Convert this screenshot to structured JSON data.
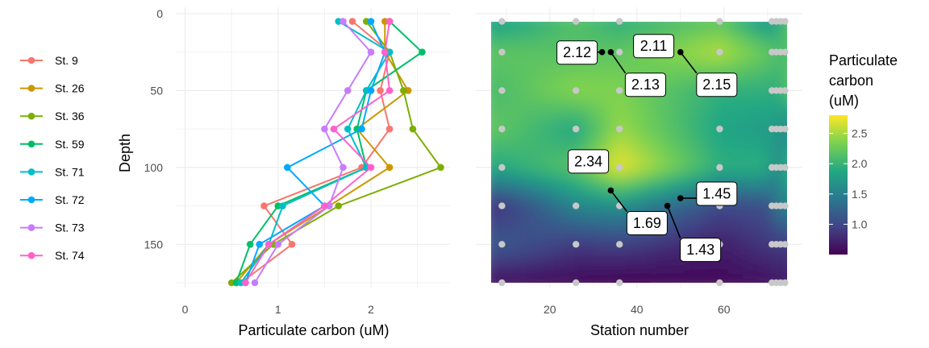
{
  "chart_data": [
    {
      "type": "line",
      "xlabel": "Particulate carbon (uM)",
      "ylabel": "Depth",
      "xlim": [
        -0.1,
        2.85
      ],
      "ylim": [
        0,
        175
      ],
      "y_reversed": true,
      "x_ticks": [
        0,
        1,
        2
      ],
      "y_ticks": [
        0,
        50,
        100,
        150
      ],
      "legend_position": "left",
      "series": [
        {
          "name": "St. 9",
          "color": "#F8766D",
          "points": [
            [
              1.8,
              5
            ],
            [
              2.2,
              25
            ],
            [
              2.1,
              50
            ],
            [
              2.2,
              75
            ],
            [
              1.9,
              100
            ],
            [
              0.85,
              125
            ],
            [
              1.15,
              150
            ],
            [
              0.6,
              175
            ]
          ]
        },
        {
          "name": "St. 26",
          "color": "#CD9600",
          "points": [
            [
              2.15,
              5
            ],
            [
              2.15,
              25
            ],
            [
              2.4,
              50
            ],
            [
              1.85,
              75
            ],
            [
              2.2,
              100
            ],
            [
              1.55,
              125
            ],
            [
              0.9,
              150
            ],
            [
              0.55,
              175
            ]
          ]
        },
        {
          "name": "St. 36",
          "color": "#7CAE00",
          "points": [
            [
              1.95,
              5
            ],
            [
              2.2,
              25
            ],
            [
              2.35,
              50
            ],
            [
              2.45,
              75
            ],
            [
              2.75,
              100
            ],
            [
              1.65,
              125
            ],
            [
              0.95,
              150
            ],
            [
              0.5,
              175
            ]
          ]
        },
        {
          "name": "St. 59",
          "color": "#00BE67",
          "points": [
            [
              2.2,
              5
            ],
            [
              2.55,
              25
            ],
            [
              1.95,
              50
            ],
            [
              1.85,
              75
            ],
            [
              1.95,
              100
            ],
            [
              1.0,
              125
            ],
            [
              0.7,
              150
            ],
            [
              0.55,
              175
            ]
          ]
        },
        {
          "name": "St. 71",
          "color": "#00BFC4",
          "points": [
            [
              1.65,
              5
            ],
            [
              2.2,
              25
            ],
            [
              1.95,
              50
            ],
            [
              1.75,
              75
            ],
            [
              1.95,
              100
            ],
            [
              1.05,
              125
            ],
            [
              0.9,
              150
            ],
            [
              0.6,
              175
            ]
          ]
        },
        {
          "name": "St. 72",
          "color": "#00A9FF",
          "points": [
            [
              2.0,
              5
            ],
            [
              2.15,
              25
            ],
            [
              2.0,
              50
            ],
            [
              1.9,
              75
            ],
            [
              1.1,
              100
            ],
            [
              1.5,
              125
            ],
            [
              0.8,
              150
            ],
            [
              0.65,
              175
            ]
          ]
        },
        {
          "name": "St. 73",
          "color": "#C77CFF",
          "points": [
            [
              1.7,
              5
            ],
            [
              2.0,
              25
            ],
            [
              1.75,
              50
            ],
            [
              1.5,
              75
            ],
            [
              1.7,
              100
            ],
            [
              1.55,
              125
            ],
            [
              1.0,
              150
            ],
            [
              0.75,
              175
            ]
          ]
        },
        {
          "name": "St. 74",
          "color": "#FF61CC",
          "points": [
            [
              2.2,
              5
            ],
            [
              2.15,
              25
            ],
            [
              2.2,
              50
            ],
            [
              1.6,
              75
            ],
            [
              2.0,
              100
            ],
            [
              1.5,
              125
            ],
            [
              0.9,
              150
            ],
            [
              0.65,
              175
            ]
          ]
        }
      ]
    },
    {
      "type": "heatmap",
      "xlabel": "Station number",
      "xlim": [
        3,
        78
      ],
      "x_ticks": [
        20,
        40,
        60
      ],
      "ylim": [
        0,
        175
      ],
      "y_reversed": true,
      "colorbar": {
        "title_lines": [
          "Particulate",
          "carbon",
          "(uM)"
        ],
        "range": [
          0.5,
          2.8
        ],
        "ticks": [
          1.0,
          1.5,
          2.0,
          2.5
        ],
        "tick_labels": [
          "1.0",
          "1.5",
          "2.0",
          "2.5"
        ],
        "colors": [
          "#440154",
          "#414487",
          "#2A788E",
          "#22A884",
          "#7AD151",
          "#FDE725"
        ]
      },
      "stations": [
        9,
        26,
        36,
        59,
        71,
        72,
        73,
        74
      ],
      "depths": [
        5,
        25,
        50,
        75,
        100,
        125,
        150,
        175
      ],
      "values": [
        [
          1.8,
          2.15,
          1.95,
          2.2,
          1.65,
          2.0,
          1.7,
          2.2
        ],
        [
          2.2,
          2.15,
          2.2,
          2.55,
          2.2,
          2.15,
          2.0,
          2.15
        ],
        [
          2.1,
          2.4,
          2.35,
          1.95,
          1.95,
          2.0,
          1.75,
          2.2
        ],
        [
          2.2,
          1.85,
          2.45,
          1.85,
          1.75,
          1.9,
          1.5,
          1.6
        ],
        [
          1.9,
          2.2,
          2.75,
          1.95,
          1.95,
          1.1,
          1.7,
          2.0
        ],
        [
          0.85,
          1.55,
          1.65,
          1.0,
          1.05,
          1.5,
          1.55,
          1.5
        ],
        [
          1.15,
          0.9,
          0.95,
          0.7,
          0.9,
          0.8,
          1.0,
          0.9
        ],
        [
          0.6,
          0.55,
          0.5,
          0.55,
          0.6,
          0.65,
          0.75,
          0.65
        ]
      ],
      "annotations": [
        {
          "text": "2.12",
          "point": [
            32,
            25
          ]
        },
        {
          "text": "2.13",
          "point": [
            34,
            25
          ]
        },
        {
          "text": "2.11",
          "point": [
            47,
            25
          ]
        },
        {
          "text": "2.15",
          "point": [
            50,
            25
          ]
        },
        {
          "text": "2.34",
          "point": [
            32,
            100
          ]
        },
        {
          "text": "1.69",
          "point": [
            34,
            115
          ]
        },
        {
          "text": "1.45",
          "point": [
            50,
            120
          ]
        },
        {
          "text": "1.43",
          "point": [
            47,
            125
          ]
        }
      ]
    }
  ]
}
